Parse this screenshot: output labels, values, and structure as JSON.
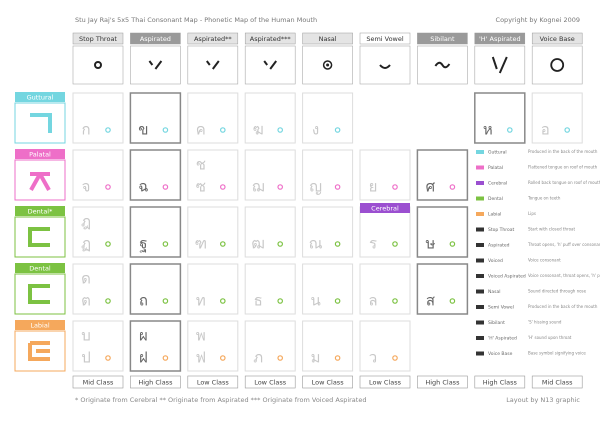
{
  "header": {
    "title": "Stu Jay Raj's 5x5 Thai Consonant Map - Phonetic Map of the Human Mouth",
    "copyright": "Copyright by Kognei 2009"
  },
  "columns": [
    {
      "label": "Stop Throat",
      "fill": "#e4e4e4",
      "ink": "#333333"
    },
    {
      "label": "Aspirated",
      "fill": "#9a9a9a",
      "ink": "#ffffff"
    },
    {
      "label": "Aspirated**",
      "fill": "#e4e4e4",
      "ink": "#333333"
    },
    {
      "label": "Aspirated***",
      "fill": "#e4e4e4",
      "ink": "#333333"
    },
    {
      "label": "Nasal",
      "fill": "#e4e4e4",
      "ink": "#333333"
    },
    {
      "label": "Semi Vowel",
      "fill": "#ffffff",
      "ink": "#333333"
    },
    {
      "label": "Sibilant",
      "fill": "#9a9a9a",
      "ink": "#ffffff"
    },
    {
      "label": "'H' Aspirated",
      "fill": "#9a9a9a",
      "ink": "#ffffff"
    },
    {
      "label": "Voice Base",
      "fill": "#e4e4e4",
      "ink": "#333333"
    }
  ],
  "rows": [
    {
      "label": "Guttural",
      "color": "#74d6e0",
      "cells": [
        [
          "ก"
        ],
        [
          "ข"
        ],
        [
          "ค"
        ],
        [
          "ฆ"
        ],
        [
          "ง"
        ],
        [],
        [],
        [
          "ห"
        ],
        [
          "อ"
        ]
      ]
    },
    {
      "label": "Palatal",
      "color": "#ee6fc8",
      "cells": [
        [
          "จ"
        ],
        [
          "ฉ"
        ],
        [
          "ช",
          "ซ"
        ],
        [
          "ฌ"
        ],
        [
          "ญ"
        ],
        [
          "ย"
        ],
        [
          "ศ"
        ]
      ]
    },
    {
      "label": "Dental*",
      "color": "#7cc242",
      "cells": [
        [
          "ฎ",
          "ฏ"
        ],
        [
          "ฐ"
        ],
        [
          "ฑ"
        ],
        [
          "ฒ"
        ],
        [
          "ณ"
        ],
        [
          "ร"
        ],
        [
          "ษ"
        ]
      ]
    },
    {
      "label": "Dental",
      "color": "#7cc242",
      "cells": [
        [
          "ด",
          "ต"
        ],
        [
          "ถ"
        ],
        [
          "ท"
        ],
        [
          "ธ"
        ],
        [
          "น"
        ],
        [
          "ล"
        ],
        [
          "ส"
        ]
      ]
    },
    {
      "label": "Labial",
      "color": "#f5a85c",
      "cells": [
        [
          "บ",
          "ป"
        ],
        [
          "ผ",
          "ฝ"
        ],
        [
          "พ",
          "ฟ"
        ],
        [
          "ภ"
        ],
        [
          "ม"
        ],
        [
          "ว"
        ],
        []
      ]
    }
  ],
  "cerebral_label": "Cerebral",
  "legend": [
    {
      "name": "Guttural",
      "desc": "Produced in the back of the mouth",
      "color": "#74d6e0"
    },
    {
      "name": "Palatal",
      "desc": "Flattened tongue on roof of mouth",
      "color": "#ee6fc8"
    },
    {
      "name": "Cerebral",
      "desc": "Rolled back tongue on roof of mouth",
      "color": "#9b4fd0"
    },
    {
      "name": "Dental",
      "desc": "Tongue on teeth",
      "color": "#7cc242"
    },
    {
      "name": "Labial",
      "desc": "Lips",
      "color": "#f5a85c"
    },
    {
      "name": "Stop Throat",
      "desc": "Start with closed throat",
      "color": "#333333"
    },
    {
      "name": "Aspirated",
      "desc": "Throat opens, 'h' puff over consonant",
      "color": "#333333"
    },
    {
      "name": "Voiced",
      "desc": "Voice consonant",
      "color": "#333333"
    },
    {
      "name": "Voiced Aspirated",
      "desc": "Voice consonant, throat opens, 'h' puff",
      "color": "#333333"
    },
    {
      "name": "Nasal",
      "desc": "Sound directed through nose",
      "color": "#333333"
    },
    {
      "name": "Semi Vowel",
      "desc": "Produced in the back of the mouth",
      "color": "#333333"
    },
    {
      "name": "Sibilant",
      "desc": "'S' hissing sound",
      "color": "#333333"
    },
    {
      "name": "'H' Aspirated",
      "desc": "'H' sound upon throat",
      "color": "#333333"
    },
    {
      "name": "Voice Base",
      "desc": "Base symbol signifying voice",
      "color": "#333333"
    }
  ],
  "classes": [
    "Mid Class",
    "High Class",
    "Low Class",
    "Low Class",
    "Low Class",
    "Low Class",
    "High Class",
    "High Class",
    "Mid Class"
  ],
  "footer": {
    "notes": "* Originate from Cerebral   ** Originate from Aspirated   *** Originate from Voiced Aspirated",
    "credit": "Layout by N13 graphic"
  }
}
